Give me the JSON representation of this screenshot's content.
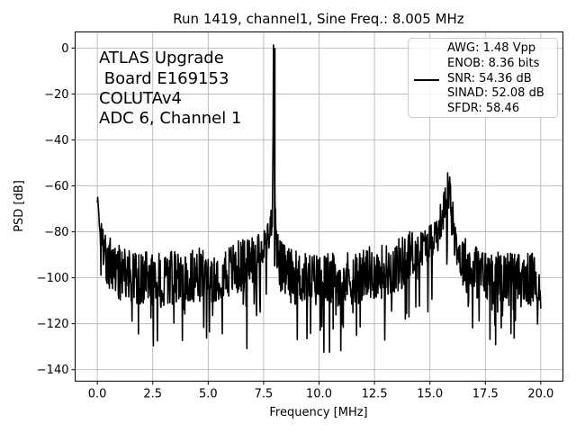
{
  "chart_data": {
    "type": "line",
    "title": "Run 1419, channel1, Sine Freq.: 8.005 MHz",
    "xlabel": "Frequency [MHz]",
    "ylabel": "PSD [dB]",
    "xlim": [
      -1.0,
      21.0
    ],
    "ylim": [
      -145,
      7
    ],
    "xticks": [
      0.0,
      2.5,
      5.0,
      7.5,
      10.0,
      12.5,
      15.0,
      17.5,
      20.0
    ],
    "xtick_labels": [
      "0.0",
      "2.5",
      "5.0",
      "7.5",
      "10.0",
      "12.5",
      "15.0",
      "17.5",
      "20.0"
    ],
    "yticks": [
      0,
      -20,
      -40,
      -60,
      -80,
      -100,
      -120,
      -140
    ],
    "ytick_labels": [
      "0",
      "−20",
      "−40",
      "−60",
      "−80",
      "−100",
      "−120",
      "−140"
    ],
    "grid": true,
    "annotation_lines": [
      "ATLAS Upgrade",
      " Board E169153",
      "COLUTAv4",
      "ADC 6, Channel 1"
    ],
    "legend": {
      "placement": "top-right",
      "entries": [
        "AWG: 1.48 Vpp",
        "ENOB: 8.36 bits",
        "SNR: 54.36 dB",
        "SINAD: 52.08 dB",
        "SFDR: 58.46"
      ]
    },
    "series": [
      {
        "color": "#000000",
        "x": [
          0.0,
          0.03,
          0.05,
          0.1,
          0.2,
          0.3,
          0.5,
          0.8,
          1.0,
          1.5,
          2.0,
          2.5,
          3.0,
          3.5,
          4.0,
          4.5,
          5.0,
          5.5,
          6.0,
          6.5,
          7.0,
          7.3,
          7.6,
          7.8,
          7.9,
          7.95,
          8.0,
          8.05,
          8.1,
          8.2,
          8.4,
          8.7,
          9.0,
          9.5,
          10.0,
          10.5,
          11.0,
          11.5,
          12.0,
          12.5,
          13.0,
          13.5,
          14.0,
          14.5,
          15.0,
          15.3,
          15.6,
          15.8,
          15.9,
          16.0,
          16.1,
          16.2,
          16.4,
          16.7,
          17.0,
          17.5,
          18.0,
          18.5,
          19.0,
          19.5,
          20.0
        ],
        "y": [
          -62,
          -60,
          -70,
          -80,
          -85,
          -88,
          -92,
          -96,
          -98,
          -100,
          -100,
          -101,
          -101,
          -100,
          -100,
          -99,
          -99,
          -98,
          -97,
          -95,
          -92,
          -88,
          -84,
          -80,
          -70,
          0,
          -60,
          -75,
          -88,
          -94,
          -97,
          -99,
          -100,
          -101,
          -101,
          -101,
          -100,
          -100,
          -99,
          -98,
          -97,
          -95,
          -92,
          -88,
          -84,
          -80,
          -72,
          -62,
          -63,
          -70,
          -78,
          -86,
          -92,
          -95,
          -97,
          -99,
          -100,
          -100,
          -101,
          -101,
          -102
        ],
        "noise_envelope_db": [
          -138,
          -62
        ]
      }
    ]
  }
}
